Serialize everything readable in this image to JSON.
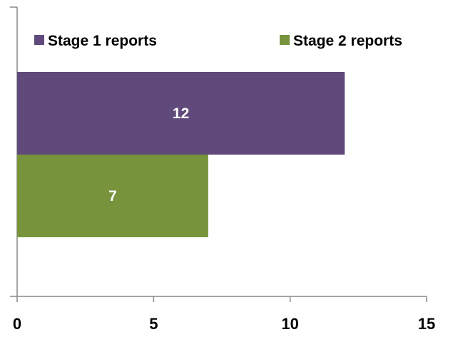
{
  "chart_data": {
    "type": "bar",
    "orientation": "horizontal",
    "series": [
      {
        "name": "Stage 1 reports",
        "values": [
          12
        ],
        "color": "#604a7b"
      },
      {
        "name": "Stage 2 reports",
        "values": [
          7
        ],
        "color": "#77933c"
      }
    ],
    "xlim": [
      0,
      15
    ],
    "xticks": [
      0,
      5,
      10,
      15
    ],
    "grid": false,
    "legend_position": "top",
    "data_labels": true
  }
}
